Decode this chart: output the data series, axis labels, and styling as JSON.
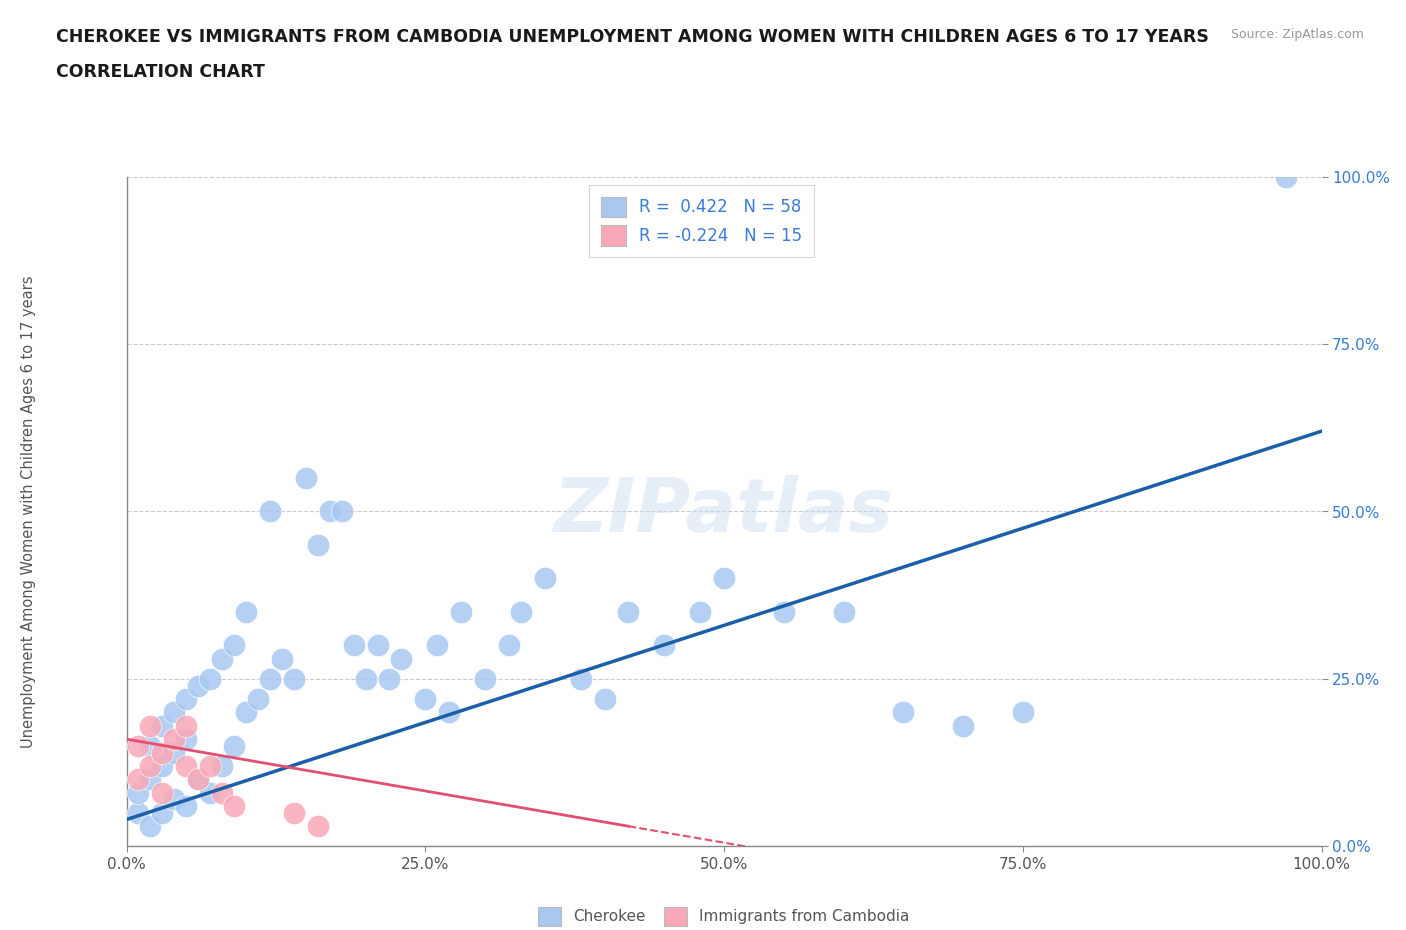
{
  "title_line1": "CHEROKEE VS IMMIGRANTS FROM CAMBODIA UNEMPLOYMENT AMONG WOMEN WITH CHILDREN AGES 6 TO 17 YEARS",
  "title_line2": "CORRELATION CHART",
  "source": "Source: ZipAtlas.com",
  "ylabel": "Unemployment Among Women with Children Ages 6 to 17 years",
  "watermark": "ZIPatlas",
  "xlim": [
    0,
    1
  ],
  "ylim": [
    0,
    1
  ],
  "xticks": [
    0,
    0.25,
    0.5,
    0.75,
    1.0
  ],
  "yticks": [
    0,
    0.25,
    0.5,
    0.75,
    1.0
  ],
  "xtick_labels": [
    "0.0%",
    "25.0%",
    "50.0%",
    "75.0%",
    "100.0%"
  ],
  "ytick_labels": [
    "0.0%",
    "25.0%",
    "50.0%",
    "75.0%",
    "100.0%"
  ],
  "R_cherokee": 0.422,
  "N_cherokee": 58,
  "R_cambodia": -0.224,
  "N_cambodia": 15,
  "cherokee_color": "#a8c8f0",
  "cambodia_color": "#f8a8b8",
  "cherokee_line_color": "#1a5fa8",
  "cambodia_line_color": "#e05070",
  "legend_r_color": "#3a7bd5",
  "background_color": "#ffffff",
  "cherokee_x": [
    0.01,
    0.01,
    0.02,
    0.02,
    0.02,
    0.03,
    0.03,
    0.03,
    0.04,
    0.04,
    0.04,
    0.05,
    0.05,
    0.05,
    0.06,
    0.06,
    0.07,
    0.07,
    0.08,
    0.08,
    0.09,
    0.09,
    0.1,
    0.1,
    0.11,
    0.12,
    0.12,
    0.13,
    0.14,
    0.15,
    0.16,
    0.17,
    0.18,
    0.19,
    0.2,
    0.21,
    0.22,
    0.23,
    0.25,
    0.26,
    0.27,
    0.28,
    0.3,
    0.32,
    0.33,
    0.35,
    0.38,
    0.4,
    0.42,
    0.45,
    0.48,
    0.5,
    0.55,
    0.6,
    0.65,
    0.7,
    0.75,
    0.97
  ],
  "cherokee_y": [
    0.05,
    0.08,
    0.03,
    0.1,
    0.15,
    0.05,
    0.12,
    0.18,
    0.07,
    0.14,
    0.2,
    0.06,
    0.16,
    0.22,
    0.1,
    0.24,
    0.08,
    0.25,
    0.12,
    0.28,
    0.15,
    0.3,
    0.2,
    0.35,
    0.22,
    0.25,
    0.5,
    0.28,
    0.25,
    0.55,
    0.45,
    0.5,
    0.5,
    0.3,
    0.25,
    0.3,
    0.25,
    0.28,
    0.22,
    0.3,
    0.2,
    0.35,
    0.25,
    0.3,
    0.35,
    0.4,
    0.25,
    0.22,
    0.35,
    0.3,
    0.35,
    0.4,
    0.35,
    0.35,
    0.2,
    0.18,
    0.2,
    1.0
  ],
  "cambodia_x": [
    0.01,
    0.01,
    0.02,
    0.02,
    0.03,
    0.03,
    0.04,
    0.05,
    0.05,
    0.06,
    0.07,
    0.08,
    0.09,
    0.14,
    0.16
  ],
  "cambodia_y": [
    0.1,
    0.15,
    0.12,
    0.18,
    0.08,
    0.14,
    0.16,
    0.12,
    0.18,
    0.1,
    0.12,
    0.08,
    0.06,
    0.05,
    0.03
  ],
  "cherokee_trendline_x": [
    0.0,
    1.0
  ],
  "cherokee_trendline_y": [
    0.04,
    0.62
  ],
  "cambodia_trendline_x": [
    0.0,
    0.42
  ],
  "cambodia_trendline_y": [
    0.16,
    0.03
  ]
}
